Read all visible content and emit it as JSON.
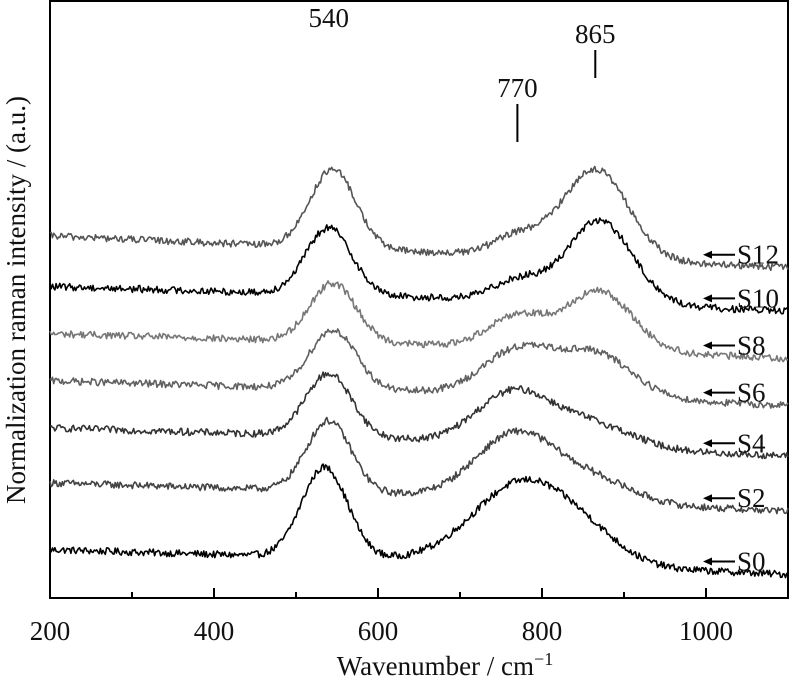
{
  "chart_data": {
    "type": "line",
    "title": "",
    "xlabel": "Wavenumber / cm",
    "xlabel_sup": "−1",
    "ylabel": "Normalization raman intensity / (a.u.)",
    "xlim": [
      200,
      1100
    ],
    "ylim": [
      0,
      7.6
    ],
    "xticks": [
      200,
      400,
      600,
      800,
      1000
    ],
    "xtick_labels": [
      "200",
      "400",
      "600",
      "800",
      "1000"
    ],
    "yticks_shown": false,
    "grid": false,
    "stacked_offset_plot": true,
    "annotations": [
      {
        "text": "540",
        "x": 540
      },
      {
        "text": "770",
        "x": 770
      },
      {
        "text": "865",
        "x": 865
      }
    ],
    "series": [
      {
        "name": "S0",
        "color": "#000000",
        "offset": 0.3,
        "baseline": [
          0.95,
          0.85,
          0.75,
          0.6
        ],
        "peaks": [
          [
            535,
            1.15,
            28
          ],
          [
            780,
            1.05,
            62
          ],
          [
            865,
            0.15,
            40
          ]
        ]
      },
      {
        "name": "S2",
        "color": "#444444",
        "offset": 1.15,
        "baseline": [
          0.95,
          0.85,
          0.7,
          0.55
        ],
        "peaks": [
          [
            540,
            0.9,
            27
          ],
          [
            770,
            0.85,
            50
          ],
          [
            870,
            0.25,
            45
          ]
        ]
      },
      {
        "name": "S4",
        "color": "#333333",
        "offset": 1.85,
        "baseline": [
          0.95,
          0.85,
          0.7,
          0.55
        ],
        "peaks": [
          [
            540,
            0.8,
            28
          ],
          [
            765,
            0.65,
            45
          ],
          [
            860,
            0.3,
            50
          ]
        ]
      },
      {
        "name": "S6",
        "color": "#606060",
        "offset": 2.45,
        "baseline": [
          0.95,
          0.85,
          0.75,
          0.6
        ],
        "peaks": [
          [
            545,
            0.75,
            28
          ],
          [
            770,
            0.55,
            42
          ],
          [
            865,
            0.55,
            45
          ]
        ]
      },
      {
        "name": "S8",
        "color": "#777777",
        "offset": 3.05,
        "baseline": [
          0.95,
          0.85,
          0.75,
          0.6
        ],
        "peaks": [
          [
            545,
            0.75,
            28
          ],
          [
            770,
            0.4,
            35
          ],
          [
            870,
            0.75,
            40
          ]
        ]
      },
      {
        "name": "S10",
        "color": "#000000",
        "offset": 3.65,
        "baseline": [
          0.95,
          0.85,
          0.75,
          0.6
        ],
        "peaks": [
          [
            540,
            0.85,
            28
          ],
          [
            770,
            0.25,
            30
          ],
          [
            870,
            1.05,
            40
          ]
        ]
      },
      {
        "name": "S12",
        "color": "#555555",
        "offset": 4.25,
        "baseline": [
          1.0,
          0.85,
          0.7,
          0.55
        ],
        "peaks": [
          [
            545,
            1.0,
            28
          ],
          [
            770,
            0.25,
            30
          ],
          [
            865,
            1.15,
            40
          ]
        ]
      }
    ]
  }
}
